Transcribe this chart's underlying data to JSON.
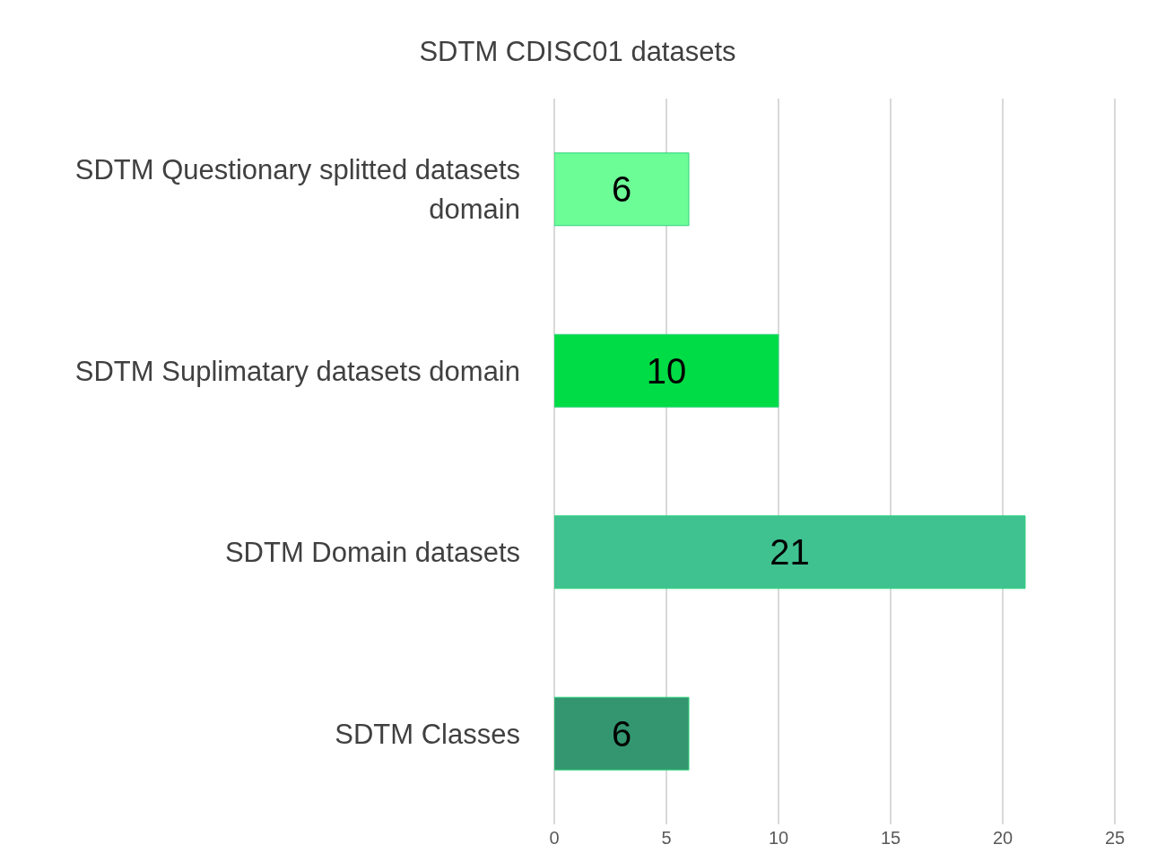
{
  "chart_data": {
    "type": "bar",
    "orientation": "horizontal",
    "title": "SDTM CDISC01  datasets",
    "categories": [
      "SDTM Questionary splitted datasets domain",
      "SDTM Suplimatary datasets domain",
      "SDTM Domain datasets",
      "SDTM Classes"
    ],
    "values": [
      6,
      10,
      21,
      6
    ],
    "colors": [
      "#6dfd97",
      "#00dc45",
      "#40c190",
      "#339670"
    ],
    "xlim": [
      0,
      25
    ],
    "xticks": [
      0,
      5,
      10,
      15,
      20,
      25
    ],
    "grid": "x",
    "data_labels": true
  }
}
